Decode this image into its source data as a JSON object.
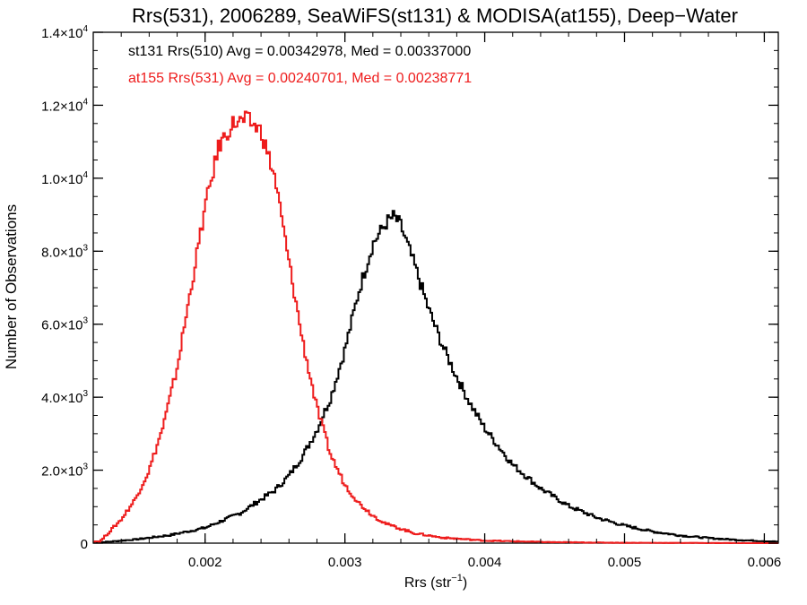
{
  "chart_data": {
    "type": "line",
    "title": "Rrs(531), 2006289, SeaWiFS(st131) & MODISA(at155), Deep−Water",
    "xlabel": "Rrs (str",
    "xlabel_sup": "−1",
    "xlabel_close": ")",
    "ylabel": "Number of Observations",
    "xlim": [
      0.0012,
      0.0061
    ],
    "ylim": [
      0,
      14000
    ],
    "xticks": [
      {
        "value": 0.002,
        "label": "0.002"
      },
      {
        "value": 0.003,
        "label": "0.003"
      },
      {
        "value": 0.004,
        "label": "0.004"
      },
      {
        "value": 0.005,
        "label": "0.005"
      },
      {
        "value": 0.006,
        "label": "0.006"
      }
    ],
    "yticks": [
      {
        "value": 0,
        "mant": "0",
        "exp": ""
      },
      {
        "value": 2000,
        "mant": "2.0×10",
        "exp": "3"
      },
      {
        "value": 4000,
        "mant": "4.0×10",
        "exp": "3"
      },
      {
        "value": 6000,
        "mant": "6.0×10",
        "exp": "3"
      },
      {
        "value": 8000,
        "mant": "8.0×10",
        "exp": "3"
      },
      {
        "value": 10000,
        "mant": "1.0×10",
        "exp": "4"
      },
      {
        "value": 12000,
        "mant": "1.2×10",
        "exp": "4"
      },
      {
        "value": 14000,
        "mant": "1.4×10",
        "exp": "4"
      }
    ],
    "grid": false,
    "annotations": [
      {
        "text": "st131 Rrs(510) Avg = 0.00342978, Med = 0.00337000",
        "color": "#000000"
      },
      {
        "text": "at155 Rrs(531) Avg = 0.00240701, Med = 0.00238771",
        "color": "#ee1c1c"
      }
    ],
    "series": [
      {
        "color": "#000000",
        "x": [
          0.00125,
          0.0015,
          0.00175,
          0.002,
          0.00225,
          0.0025,
          0.0026,
          0.0027,
          0.0028,
          0.0029,
          0.003,
          0.0031,
          0.0032,
          0.0033,
          0.00335,
          0.0034,
          0.0035,
          0.0036,
          0.0037,
          0.0038,
          0.0039,
          0.004,
          0.0042,
          0.0044,
          0.0046,
          0.0048,
          0.005,
          0.0052,
          0.0054,
          0.0056,
          0.0058,
          0.0061
        ],
        "y": [
          20,
          100,
          220,
          420,
          820,
          1450,
          1850,
          2400,
          3100,
          4000,
          5300,
          6900,
          8200,
          8800,
          8950,
          8700,
          7600,
          6400,
          5400,
          4550,
          3800,
          3150,
          2150,
          1500,
          1020,
          700,
          480,
          320,
          210,
          140,
          90,
          40
        ]
      },
      {
        "color": "#ee1c1c",
        "x": [
          0.00125,
          0.0013,
          0.0014,
          0.0015,
          0.0016,
          0.0017,
          0.0018,
          0.0019,
          0.002,
          0.0021,
          0.0022,
          0.0023,
          0.0024,
          0.0025,
          0.0026,
          0.0027,
          0.0028,
          0.0029,
          0.003,
          0.0031,
          0.0032,
          0.0033,
          0.0035,
          0.0037,
          0.004,
          0.0045,
          0.005,
          0.0061
        ],
        "y": [
          50,
          250,
          650,
          1200,
          2000,
          3200,
          4800,
          7000,
          9200,
          10900,
          11500,
          11600,
          11300,
          10000,
          7700,
          5500,
          3700,
          2400,
          1600,
          1100,
          760,
          520,
          270,
          150,
          70,
          25,
          10,
          0
        ]
      }
    ]
  }
}
